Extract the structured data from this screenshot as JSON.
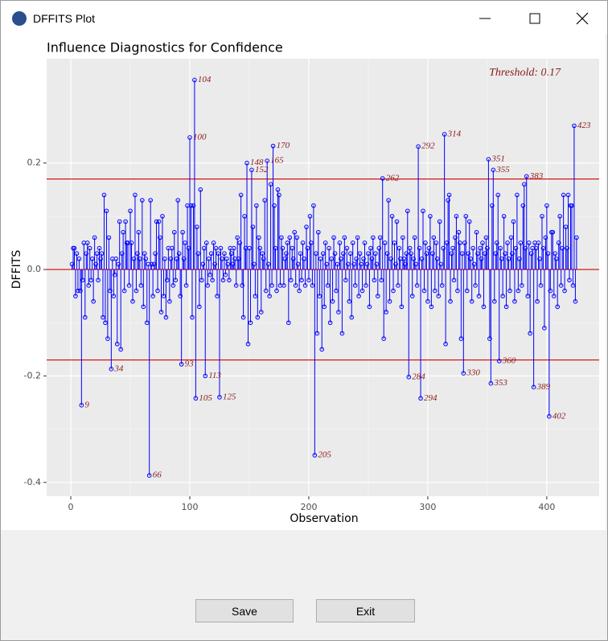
{
  "window": {
    "title": "DFFITS Plot"
  },
  "buttons": [
    "Save",
    "Exit"
  ],
  "chart_data": {
    "type": "lollipop",
    "title": "Influence Diagnostics for Confidence",
    "x_label": "Observation",
    "y_label": "DFFITS",
    "annotation": "Threshold: 0.17",
    "threshold": 0.17,
    "color": "#0000ff",
    "threshold_color": "#d40000",
    "label_color": "#8b1a1a",
    "grid": true,
    "xlim": [
      -20.3,
      444
    ],
    "ylim": [
      -0.426,
      0.396
    ],
    "xticks": [
      0,
      100,
      200,
      300,
      400
    ],
    "yticks": [
      -0.4,
      -0.2,
      {
        "value": 0,
        "label": "0.0"
      },
      0.2
    ],
    "x": [
      1,
      2,
      3,
      4,
      5,
      6,
      7,
      8,
      9,
      10,
      11,
      12,
      13,
      14,
      15,
      16,
      17,
      18,
      19,
      20,
      21,
      22,
      23,
      24,
      25,
      26,
      27,
      28,
      29,
      30,
      31,
      32,
      33,
      34,
      35,
      36,
      37,
      38,
      39,
      40,
      41,
      42,
      43,
      44,
      45,
      46,
      47,
      48,
      49,
      50,
      51,
      52,
      53,
      54,
      55,
      56,
      57,
      58,
      59,
      60,
      61,
      62,
      63,
      64,
      65,
      66,
      67,
      68,
      69,
      70,
      71,
      72,
      73,
      74,
      75,
      76,
      77,
      78,
      79,
      80,
      81,
      82,
      83,
      84,
      85,
      86,
      87,
      88,
      89,
      90,
      91,
      92,
      93,
      94,
      95,
      96,
      97,
      98,
      99,
      100,
      101,
      102,
      103,
      104,
      105,
      106,
      107,
      108,
      109,
      110,
      111,
      112,
      113,
      114,
      115,
      116,
      117,
      118,
      119,
      120,
      121,
      122,
      123,
      124,
      125,
      126,
      127,
      128,
      129,
      130,
      131,
      132,
      133,
      134,
      135,
      136,
      137,
      138,
      139,
      140,
      141,
      142,
      143,
      144,
      145,
      146,
      147,
      148,
      149,
      150,
      151,
      152,
      153,
      154,
      155,
      156,
      157,
      158,
      159,
      160,
      161,
      162,
      163,
      164,
      165,
      166,
      167,
      168,
      169,
      170,
      171,
      172,
      173,
      174,
      175,
      176,
      177,
      178,
      179,
      180,
      181,
      182,
      183,
      184,
      185,
      186,
      187,
      188,
      189,
      190,
      191,
      192,
      193,
      194,
      195,
      196,
      197,
      198,
      199,
      200,
      201,
      202,
      203,
      204,
      205,
      206,
      207,
      208,
      209,
      210,
      211,
      212,
      213,
      214,
      215,
      216,
      217,
      218,
      219,
      220,
      221,
      222,
      223,
      224,
      225,
      226,
      227,
      228,
      229,
      230,
      231,
      232,
      233,
      234,
      235,
      236,
      237,
      238,
      239,
      240,
      241,
      242,
      243,
      244,
      245,
      246,
      247,
      248,
      249,
      250,
      251,
      252,
      253,
      254,
      255,
      256,
      257,
      258,
      259,
      260,
      261,
      262,
      263,
      264,
      265,
      266,
      267,
      268,
      269,
      270,
      271,
      272,
      273,
      274,
      275,
      276,
      277,
      278,
      279,
      280,
      281,
      282,
      283,
      284,
      285,
      286,
      287,
      288,
      289,
      290,
      291,
      292,
      293,
      294,
      295,
      296,
      297,
      298,
      299,
      300,
      301,
      302,
      303,
      304,
      305,
      306,
      307,
      308,
      309,
      310,
      311,
      312,
      313,
      314,
      315,
      316,
      317,
      318,
      319,
      320,
      321,
      322,
      323,
      324,
      325,
      326,
      327,
      328,
      329,
      330,
      331,
      332,
      333,
      334,
      335,
      336,
      337,
      338,
      339,
      340,
      341,
      342,
      343,
      344,
      345,
      346,
      347,
      348,
      349,
      350,
      351,
      352,
      353,
      354,
      355,
      356,
      357,
      358,
      359,
      360,
      361,
      362,
      363,
      364,
      365,
      366,
      367,
      368,
      369,
      370,
      371,
      372,
      373,
      374,
      375,
      376,
      377,
      378,
      379,
      380,
      381,
      382,
      383,
      384,
      385,
      386,
      387,
      388,
      389,
      390,
      391,
      392,
      393,
      394,
      395,
      396,
      397,
      398,
      399,
      400,
      401,
      402,
      403,
      404,
      405,
      406,
      407,
      408,
      409,
      410,
      411,
      412,
      413,
      414,
      415,
      416,
      417,
      418,
      419,
      420,
      421,
      422,
      423,
      424,
      425
    ],
    "values": [
      0.01,
      0.04,
      0.04,
      -0.05,
      0.03,
      -0.04,
      0.02,
      -0.04,
      -0.255,
      -0.02,
      0.05,
      -0.09,
      0.03,
      0.05,
      -0.03,
      0.04,
      -0.02,
      0.02,
      -0.06,
      0.06,
      0.01,
      0.03,
      -0.02,
      0.04,
      0.02,
      0.03,
      -0.09,
      0.14,
      -0.1,
      0.11,
      -0.13,
      0.06,
      -0.04,
      -0.187,
      0.02,
      -0.05,
      -0.01,
      0.02,
      -0.14,
      0.01,
      0.09,
      -0.15,
      0.03,
      0.07,
      -0.04,
      0.09,
      0.05,
      0.05,
      -0.03,
      0.11,
      0.05,
      -0.06,
      0.02,
      0.14,
      -0.04,
      0.03,
      0.07,
      0.02,
      -0.03,
      0.13,
      -0.07,
      0.03,
      0.02,
      -0.1,
      0.01,
      -0.387,
      0.13,
      0.01,
      -0.05,
      0.01,
      0.03,
      0.09,
      -0.04,
      0.09,
      0.06,
      -0.08,
      0.1,
      -0.05,
      0.02,
      -0.09,
      -0.02,
      0.04,
      -0.06,
      0.02,
      0.04,
      -0.03,
      0.07,
      -0.02,
      0.02,
      0.13,
      0.03,
      -0.05,
      -0.178,
      0.07,
      0.02,
      0.05,
      -0.03,
      0.12,
      0.04,
      0.248,
      0.12,
      -0.09,
      0.12,
      0.356,
      -0.242,
      0.08,
      0.03,
      -0.07,
      0.15,
      -0.02,
      0.01,
      0.04,
      -0.2,
      0.05,
      -0.03,
      0.02,
      -0.01,
      0.03,
      -0.02,
      0.05,
      0.01,
      0.04,
      -0.05,
      0.03,
      -0.24,
      0.04,
      0.02,
      -0.02,
      0.03,
      -0.01,
      0.02,
      0.01,
      -0.02,
      0.04,
      0.03,
      0.01,
      0.04,
      0.02,
      -0.03,
      0.06,
      0.02,
      0.05,
      0.14,
      -0.03,
      -0.09,
      0.1,
      0.04,
      0.2,
      -0.14,
      0.04,
      -0.1,
      0.187,
      0.08,
      0.01,
      -0.05,
      0.12,
      -0.09,
      0.06,
      0.04,
      -0.08,
      0.03,
      0.02,
      0.13,
      -0.04,
      0.204,
      0.01,
      -0.05,
      0.16,
      -0.03,
      0.232,
      0.12,
      0.04,
      -0.04,
      0.15,
      0.14,
      -0.03,
      0.06,
      0.04,
      -0.03,
      0.02,
      0.03,
      0.05,
      -0.1,
      0.06,
      -0.02,
      0.04,
      0.02,
      0.07,
      -0.03,
      0.06,
      0.01,
      -0.04,
      0.03,
      -0.02,
      0.05,
      0.02,
      -0.03,
      0.08,
      0.04,
      -0.02,
      0.1,
      0.05,
      -0.03,
      0.12,
      -0.349,
      0.03,
      -0.12,
      0.07,
      -0.05,
      0.02,
      -0.15,
      0.03,
      -0.07,
      0.05,
      0.01,
      -0.03,
      0.04,
      -0.1,
      0.02,
      -0.06,
      0.06,
      0.03,
      -0.04,
      0.01,
      -0.08,
      0.05,
      0.02,
      -0.12,
      0.03,
      0.06,
      -0.02,
      0.04,
      0.01,
      -0.06,
      0.03,
      -0.09,
      0.05,
      0.01,
      -0.03,
      0.02,
      0.06,
      -0.05,
      0.03,
      0.01,
      -0.04,
      0.02,
      0.05,
      -0.03,
      0.01,
      0.03,
      -0.07,
      0.04,
      0.02,
      0.06,
      -0.02,
      0.03,
      0.01,
      -0.05,
      0.04,
      0.06,
      -0.02,
      0.171,
      -0.13,
      0.05,
      -0.08,
      0.03,
      0.13,
      -0.06,
      0.02,
      0.1,
      -0.04,
      0.05,
      0.01,
      0.09,
      -0.03,
      0.04,
      0.02,
      -0.07,
      0.06,
      0.02,
      0.01,
      0.03,
      0.11,
      -0.202,
      0.04,
      0.03,
      -0.05,
      0.02,
      0.06,
      0.01,
      -0.03,
      0.231,
      0.04,
      -0.242,
      0.02,
      0.11,
      -0.04,
      0.05,
      0.03,
      -0.06,
      0.04,
      0.1,
      -0.07,
      0.03,
      0.06,
      -0.04,
      0.05,
      0.02,
      -0.05,
      0.09,
      0.01,
      -0.03,
      0.04,
      0.254,
      -0.14,
      0.05,
      0.13,
      0.14,
      -0.06,
      0.03,
      0.04,
      -0.02,
      0.06,
      0.1,
      -0.04,
      0.07,
      0.05,
      -0.13,
      0.03,
      -0.195,
      0.05,
      0.1,
      -0.04,
      0.03,
      0.09,
      0.02,
      -0.06,
      0.04,
      0.01,
      -0.03,
      0.07,
      0.03,
      -0.05,
      0.04,
      0.02,
      0.05,
      -0.07,
      0.03,
      0.06,
      0.04,
      0.207,
      -0.13,
      -0.214,
      0.12,
      0.187,
      -0.06,
      0.03,
      0.05,
      0.14,
      -0.172,
      0.04,
      0.02,
      -0.05,
      0.1,
      0.03,
      -0.07,
      0.05,
      0.02,
      -0.04,
      0.06,
      0.03,
      0.09,
      -0.06,
      0.04,
      0.14,
      -0.04,
      0.02,
      0.05,
      -0.03,
      0.12,
      0.16,
      0.04,
      0.175,
      -0.05,
      0.05,
      -0.12,
      0.03,
      0.04,
      -0.221,
      0.05,
      0.04,
      -0.06,
      0.05,
      0.02,
      -0.03,
      0.1,
      0.04,
      -0.11,
      0.06,
      0.12,
      0.03,
      -0.276,
      -0.04,
      0.07,
      0.07,
      -0.05,
      0.03,
      0.02,
      -0.07,
      0.05,
      0.1,
      -0.03,
      0.04,
      0.14,
      -0.04,
      0.08,
      0.04,
      0.14,
      -0.02,
      0.12,
      0.12,
      -0.03,
      0.27,
      -0.06,
      0.06
    ]
  }
}
